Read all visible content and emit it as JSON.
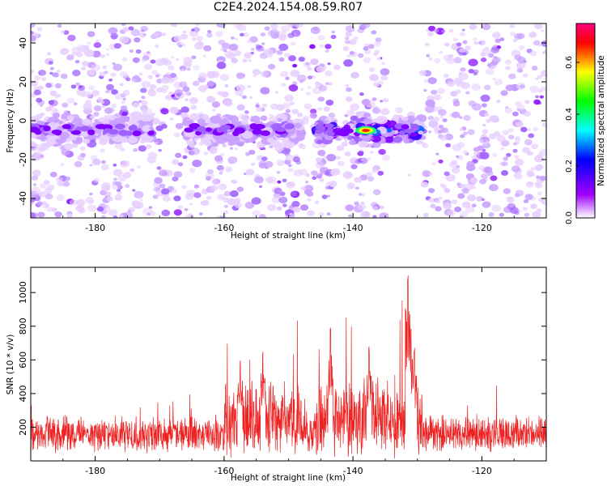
{
  "title": "C2E4.2024.154.08.59.R07",
  "chart_data": [
    {
      "type": "heatmap",
      "xlabel": "Height of straight line (km)",
      "ylabel": "Frequency (Hz)",
      "xlim": [
        -190,
        -110
      ],
      "ylim": [
        -50,
        50
      ],
      "xticks": [
        -180,
        -160,
        -140,
        -120
      ],
      "yticks": [
        -40,
        -20,
        0,
        20,
        40
      ],
      "grid": false,
      "colorbar": {
        "label": "Normalized spectral amplitude",
        "range": [
          0,
          0.75
        ],
        "ticks": [
          "0.0",
          "0.2",
          "0.4",
          "0.6"
        ],
        "colormap": [
          "#ffffff",
          "#a000ff",
          "#0000ff",
          "#00ffff",
          "#00ff00",
          "#ffff00",
          "#ff0000",
          "#ff00a0"
        ]
      },
      "signal_band": {
        "frequency_hz": -5,
        "segments": [
          {
            "from": -190,
            "to": -171,
            "peak": 0.3
          },
          {
            "from": -166,
            "to": -148,
            "peak": 0.28
          },
          {
            "from": -146,
            "to": -129,
            "peak": 0.72
          }
        ],
        "max_at_km": -138,
        "max_value": 0.72
      },
      "quiet_regions_km": [
        [
          -143,
          -141
        ],
        [
          -135,
          -129
        ]
      ]
    },
    {
      "type": "line",
      "xlabel": "Height of straight line (km)",
      "ylabel": "SNR (10 * v/v)",
      "xlim": [
        -190,
        -110
      ],
      "ylim": [
        0,
        1150
      ],
      "xticks": [
        -180,
        -160,
        -140,
        -120
      ],
      "yticks": [
        200,
        400,
        600,
        800,
        1000
      ],
      "grid": false,
      "line_color": "#ee2222",
      "baseline": 150,
      "noise_amplitude": 110,
      "enhanced_regions": [
        {
          "from": -160,
          "to": -148,
          "level": 300
        },
        {
          "from": -146,
          "to": -129,
          "level": 320
        }
      ],
      "peaks": [
        {
          "x": -143.5,
          "y": 810
        },
        {
          "x": -137.5,
          "y": 680
        },
        {
          "x": -131.5,
          "y": 1140
        },
        {
          "x": -131.0,
          "y": 820
        },
        {
          "x": -130.5,
          "y": 690
        },
        {
          "x": -154.0,
          "y": 660
        },
        {
          "x": -157.5,
          "y": 620
        }
      ]
    }
  ]
}
